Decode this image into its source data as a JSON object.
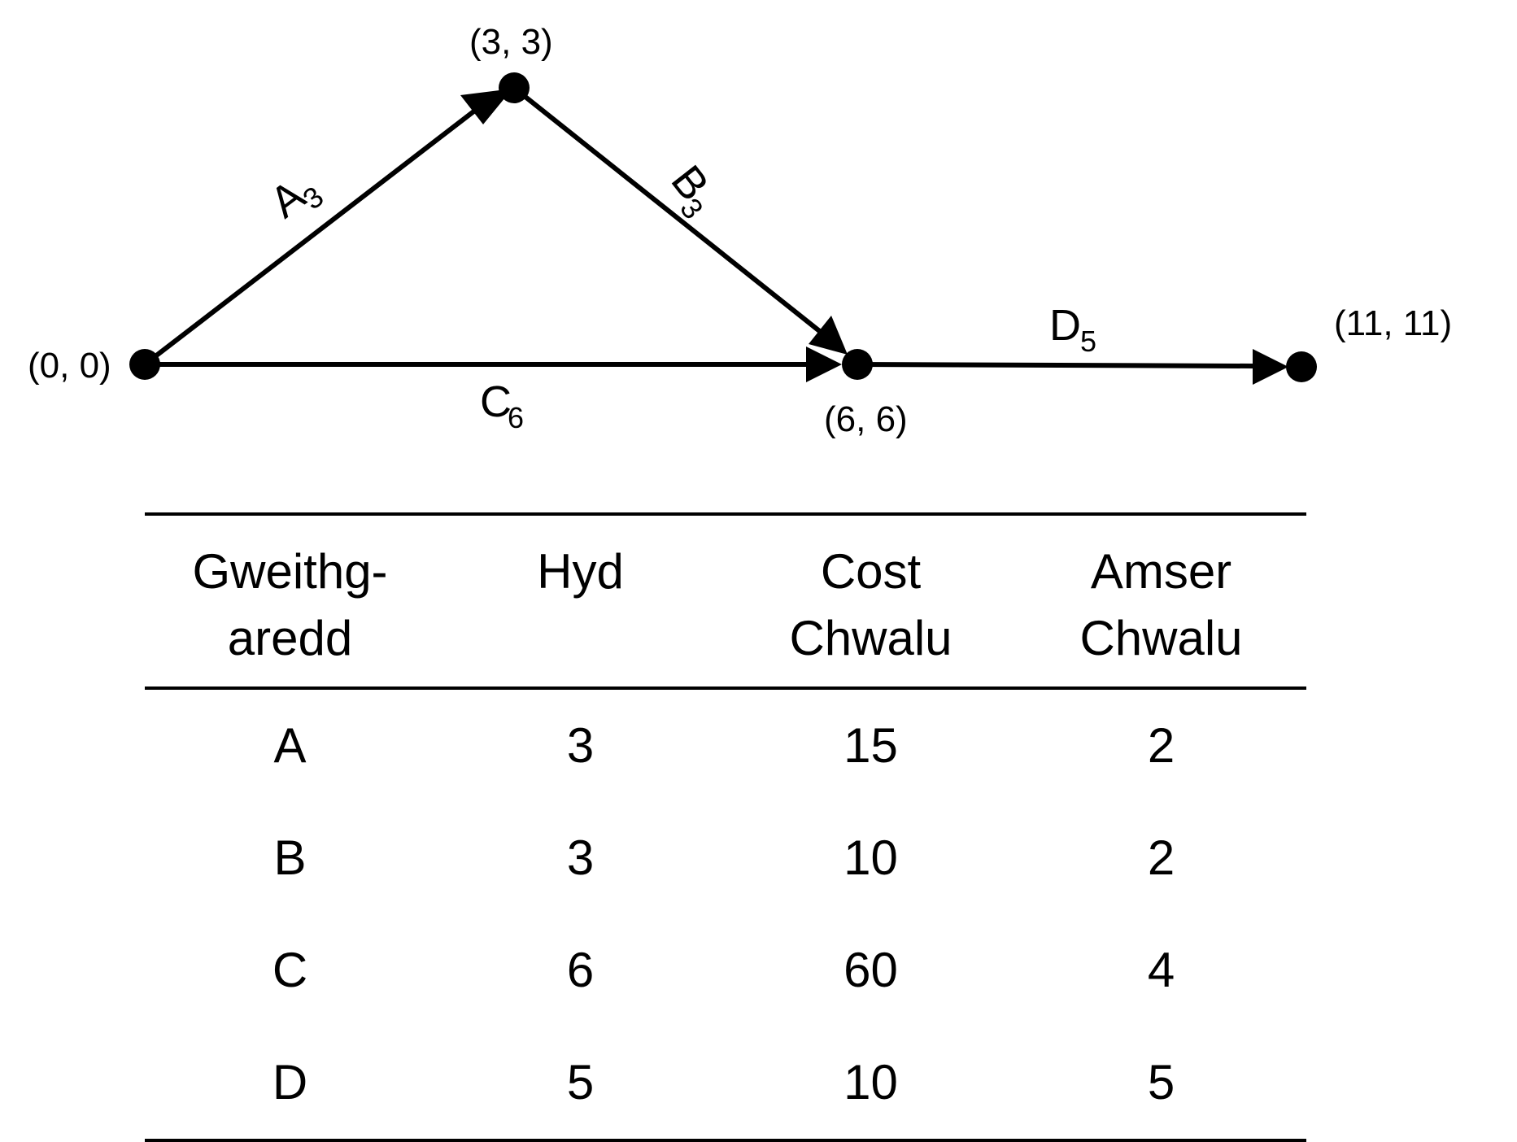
{
  "network": {
    "nodes": [
      {
        "id": "start",
        "label": "(0, 0)"
      },
      {
        "id": "top",
        "label": "(3, 3)"
      },
      {
        "id": "mid",
        "label": "(6, 6)"
      },
      {
        "id": "end",
        "label": "(11, 11)"
      }
    ],
    "edges": [
      {
        "id": "A",
        "letter": "A",
        "duration": "3",
        "from": "start",
        "to": "top"
      },
      {
        "id": "B",
        "letter": "B",
        "duration": "3",
        "from": "top",
        "to": "mid"
      },
      {
        "id": "C",
        "letter": "C",
        "duration": "6",
        "from": "start",
        "to": "mid"
      },
      {
        "id": "D",
        "letter": "D",
        "duration": "5",
        "from": "mid",
        "to": "end"
      }
    ]
  },
  "table": {
    "headers": [
      [
        "Gweithg-",
        "aredd"
      ],
      [
        "Hyd",
        ""
      ],
      [
        "Cost",
        "Chwalu"
      ],
      [
        "Amser",
        "Chwalu"
      ]
    ],
    "rows": [
      [
        "A",
        "3",
        "15",
        "2"
      ],
      [
        "B",
        "3",
        "10",
        "2"
      ],
      [
        "C",
        "6",
        "60",
        "4"
      ],
      [
        "D",
        "5",
        "10",
        "5"
      ]
    ]
  }
}
